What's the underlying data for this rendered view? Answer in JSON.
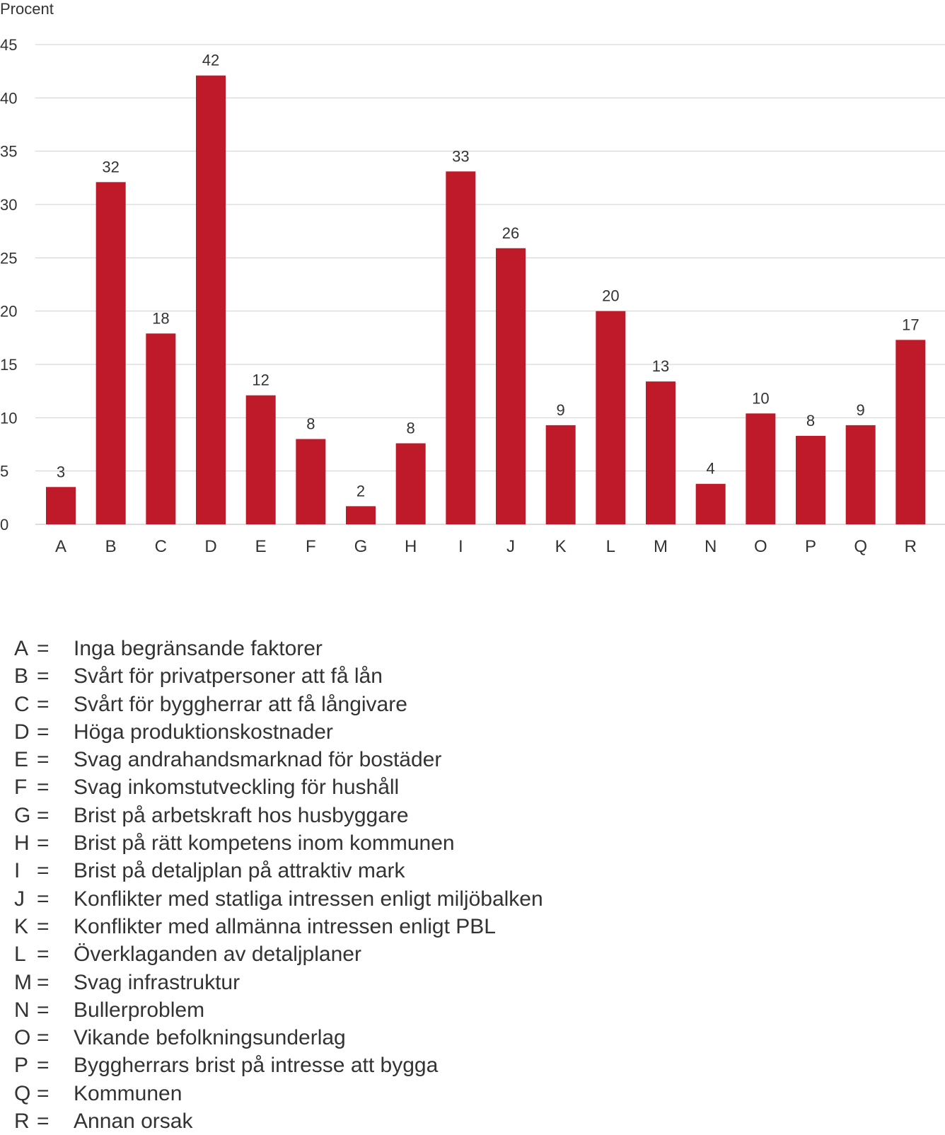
{
  "chart_data": {
    "type": "bar",
    "ylabel": "Procent",
    "ylim": [
      0,
      45
    ],
    "yticks": [
      0,
      5,
      10,
      15,
      20,
      25,
      30,
      35,
      40,
      45
    ],
    "grid": true,
    "bar_color": "#be1a2a",
    "categories": [
      "A",
      "B",
      "C",
      "D",
      "E",
      "F",
      "G",
      "H",
      "I",
      "J",
      "K",
      "L",
      "M",
      "N",
      "O",
      "P",
      "Q",
      "R"
    ],
    "values": [
      3.5,
      32.1,
      17.9,
      42.1,
      12.1,
      8.0,
      1.7,
      7.6,
      33.1,
      25.9,
      9.3,
      20.0,
      13.4,
      3.8,
      10.4,
      8.3,
      9.3,
      17.3
    ],
    "data_labels": [
      "3",
      "32",
      "18",
      "42",
      "12",
      "8",
      "2",
      "8",
      "33",
      "26",
      "9",
      "20",
      "13",
      "4",
      "10",
      "8",
      "9",
      "17"
    ]
  },
  "legend": {
    "separator": "=",
    "items": [
      {
        "key": "A",
        "text": "Inga begränsande faktorer"
      },
      {
        "key": "B",
        "text": "Svårt för privatpersoner att få lån"
      },
      {
        "key": "C",
        "text": "Svårt för byggherrar att få långivare"
      },
      {
        "key": "D",
        "text": "Höga produktionskostnader"
      },
      {
        "key": "E",
        "text": "Svag andrahandsmarknad för bostäder"
      },
      {
        "key": "F",
        "text": "Svag inkomstutveckling för hushåll"
      },
      {
        "key": "G",
        "text": "Brist på arbetskraft hos husbyggare"
      },
      {
        "key": "H",
        "text": "Brist på rätt kompetens inom kommunen"
      },
      {
        "key": "I",
        "text": "Brist på detaljplan på attraktiv mark"
      },
      {
        "key": "J",
        "text": "Konflikter med statliga intressen enligt miljöbalken"
      },
      {
        "key": "K",
        "text": "Konflikter med allmänna intressen enligt PBL"
      },
      {
        "key": "L",
        "text": "Överklaganden av detaljplaner"
      },
      {
        "key": "M",
        "text": "Svag infrastruktur"
      },
      {
        "key": "N",
        "text": "Bullerproblem"
      },
      {
        "key": "O",
        "text": "Vikande befolkningsunderlag"
      },
      {
        "key": "P",
        "text": "Byggherrars brist på intresse att bygga"
      },
      {
        "key": "Q",
        "text": "Kommunen"
      },
      {
        "key": "R",
        "text": "Annan orsak"
      }
    ]
  }
}
